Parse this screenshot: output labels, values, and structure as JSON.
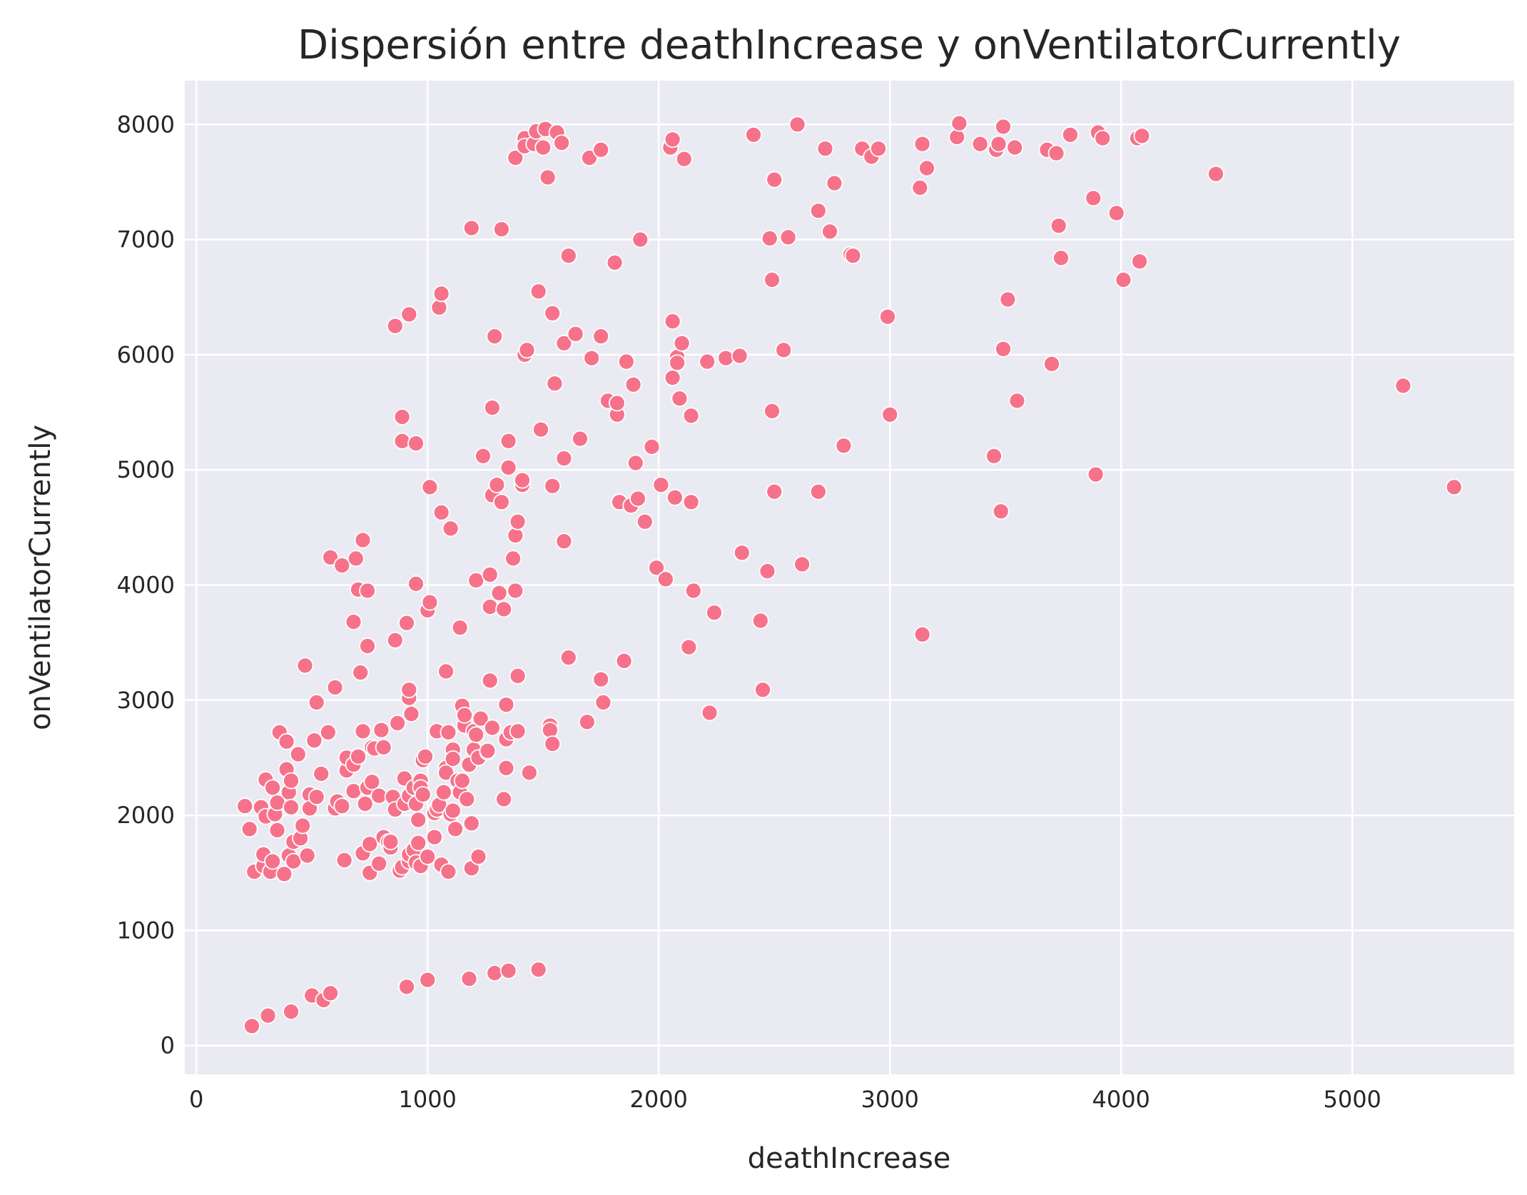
{
  "chart_data": {
    "type": "scatter",
    "title": "Dispersión entre deathIncrease y onVentilatorCurrently",
    "xlabel": "deathIncrease",
    "ylabel": "onVentilatorCurrently",
    "xlim": [
      -50,
      5700
    ],
    "ylim": [
      -250,
      8380
    ],
    "xticks": [
      0,
      1000,
      2000,
      3000,
      4000,
      5000
    ],
    "yticks": [
      0,
      1000,
      2000,
      3000,
      4000,
      5000,
      6000,
      7000,
      8000
    ],
    "grid": true,
    "background": "#eaeaf2",
    "marker_color": "#f6728a",
    "points": [
      [
        240,
        170
      ],
      [
        310,
        260
      ],
      [
        410,
        295
      ],
      [
        500,
        435
      ],
      [
        550,
        395
      ],
      [
        580,
        455
      ],
      [
        910,
        510
      ],
      [
        1000,
        570
      ],
      [
        1180,
        580
      ],
      [
        1290,
        630
      ],
      [
        1350,
        650
      ],
      [
        1480,
        660
      ],
      [
        210,
        2080
      ],
      [
        230,
        1880
      ],
      [
        250,
        1510
      ],
      [
        280,
        2070
      ],
      [
        290,
        1560
      ],
      [
        290,
        1660
      ],
      [
        300,
        2310
      ],
      [
        300,
        1990
      ],
      [
        320,
        1510
      ],
      [
        330,
        1600
      ],
      [
        330,
        2240
      ],
      [
        340,
        2010
      ],
      [
        350,
        2110
      ],
      [
        350,
        1870
      ],
      [
        360,
        2720
      ],
      [
        380,
        1490
      ],
      [
        390,
        2400
      ],
      [
        390,
        2640
      ],
      [
        400,
        1650
      ],
      [
        400,
        2200
      ],
      [
        410,
        2300
      ],
      [
        410,
        2070
      ],
      [
        420,
        1600
      ],
      [
        420,
        1770
      ],
      [
        440,
        2530
      ],
      [
        450,
        1800
      ],
      [
        460,
        1910
      ],
      [
        470,
        3300
      ],
      [
        480,
        1650
      ],
      [
        490,
        2180
      ],
      [
        490,
        2060
      ],
      [
        510,
        2640
      ],
      [
        510,
        2650
      ],
      [
        520,
        2160
      ],
      [
        520,
        2980
      ],
      [
        540,
        2360
      ],
      [
        570,
        2720
      ],
      [
        580,
        4240
      ],
      [
        600,
        3110
      ],
      [
        600,
        2060
      ],
      [
        610,
        2120
      ],
      [
        630,
        2080
      ],
      [
        630,
        4170
      ],
      [
        640,
        1610
      ],
      [
        650,
        2390
      ],
      [
        650,
        2500
      ],
      [
        680,
        3680
      ],
      [
        680,
        2210
      ],
      [
        680,
        2440
      ],
      [
        690,
        4230
      ],
      [
        700,
        3960
      ],
      [
        700,
        2510
      ],
      [
        710,
        3240
      ],
      [
        720,
        4390
      ],
      [
        720,
        2730
      ],
      [
        720,
        1670
      ],
      [
        730,
        2100
      ],
      [
        740,
        2240
      ],
      [
        740,
        3470
      ],
      [
        740,
        3950
      ],
      [
        750,
        1750
      ],
      [
        750,
        1500
      ],
      [
        760,
        2290
      ],
      [
        760,
        2590
      ],
      [
        770,
        2580
      ],
      [
        790,
        1580
      ],
      [
        790,
        2170
      ],
      [
        800,
        2740
      ],
      [
        810,
        2590
      ],
      [
        810,
        1810
      ],
      [
        830,
        1770
      ],
      [
        840,
        1720
      ],
      [
        840,
        1770
      ],
      [
        850,
        2160
      ],
      [
        860,
        6250
      ],
      [
        860,
        2050
      ],
      [
        860,
        3520
      ],
      [
        870,
        2800
      ],
      [
        880,
        1520
      ],
      [
        890,
        1550
      ],
      [
        890,
        5460
      ],
      [
        890,
        5250
      ],
      [
        900,
        2320
      ],
      [
        900,
        2100
      ],
      [
        910,
        3670
      ],
      [
        920,
        1600
      ],
      [
        920,
        1660
      ],
      [
        920,
        6350
      ],
      [
        920,
        3020
      ],
      [
        920,
        2170
      ],
      [
        920,
        3090
      ],
      [
        930,
        2880
      ],
      [
        940,
        1700
      ],
      [
        940,
        2240
      ],
      [
        950,
        1590
      ],
      [
        950,
        5230
      ],
      [
        950,
        4010
      ],
      [
        950,
        2100
      ],
      [
        960,
        1960
      ],
      [
        960,
        1760
      ],
      [
        970,
        2300
      ],
      [
        970,
        2240
      ],
      [
        970,
        1560
      ],
      [
        980,
        2180
      ],
      [
        980,
        2480
      ],
      [
        990,
        2510
      ],
      [
        1000,
        3780
      ],
      [
        1000,
        1640
      ],
      [
        1010,
        3850
      ],
      [
        1010,
        4850
      ],
      [
        1030,
        2020
      ],
      [
        1030,
        1810
      ],
      [
        1040,
        2050
      ],
      [
        1040,
        2730
      ],
      [
        1050,
        6410
      ],
      [
        1050,
        2090
      ],
      [
        1060,
        6530
      ],
      [
        1060,
        4630
      ],
      [
        1060,
        1570
      ],
      [
        1070,
        2200
      ],
      [
        1080,
        2410
      ],
      [
        1080,
        3250
      ],
      [
        1080,
        2370
      ],
      [
        1090,
        2720
      ],
      [
        1090,
        1510
      ],
      [
        1100,
        2010
      ],
      [
        1100,
        4490
      ],
      [
        1110,
        2570
      ],
      [
        1110,
        2490
      ],
      [
        1110,
        2040
      ],
      [
        1120,
        1880
      ],
      [
        1130,
        2300
      ],
      [
        1140,
        3630
      ],
      [
        1140,
        2200
      ],
      [
        1150,
        2300
      ],
      [
        1150,
        2950
      ],
      [
        1160,
        2780
      ],
      [
        1160,
        2870
      ],
      [
        1170,
        2140
      ],
      [
        1180,
        2440
      ],
      [
        1190,
        7100
      ],
      [
        1190,
        1540
      ],
      [
        1190,
        1930
      ],
      [
        1200,
        2570
      ],
      [
        1200,
        2730
      ],
      [
        1210,
        2700
      ],
      [
        1210,
        4040
      ],
      [
        1220,
        2500
      ],
      [
        1220,
        1640
      ],
      [
        1230,
        2840
      ],
      [
        1240,
        5120
      ],
      [
        1260,
        2550
      ],
      [
        1260,
        2560
      ],
      [
        1270,
        3810
      ],
      [
        1270,
        4090
      ],
      [
        1270,
        3170
      ],
      [
        1280,
        4780
      ],
      [
        1280,
        5540
      ],
      [
        1280,
        2760
      ],
      [
        1290,
        6160
      ],
      [
        1300,
        4870
      ],
      [
        1310,
        3930
      ],
      [
        1320,
        4720
      ],
      [
        1320,
        7090
      ],
      [
        1330,
        3790
      ],
      [
        1330,
        2140
      ],
      [
        1340,
        2960
      ],
      [
        1340,
        2410
      ],
      [
        1340,
        2660
      ],
      [
        1350,
        5250
      ],
      [
        1350,
        5020
      ],
      [
        1360,
        2720
      ],
      [
        1370,
        4230
      ],
      [
        1380,
        4430
      ],
      [
        1380,
        3950
      ],
      [
        1380,
        7710
      ],
      [
        1390,
        4550
      ],
      [
        1390,
        3210
      ],
      [
        1390,
        2730
      ],
      [
        1410,
        4870
      ],
      [
        1410,
        4910
      ],
      [
        1420,
        7880
      ],
      [
        1420,
        7810
      ],
      [
        1420,
        6000
      ],
      [
        1430,
        6040
      ],
      [
        1440,
        2370
      ],
      [
        1460,
        7830
      ],
      [
        1470,
        7940
      ],
      [
        1480,
        6550
      ],
      [
        1490,
        5350
      ],
      [
        1500,
        7800
      ],
      [
        1510,
        7960
      ],
      [
        1520,
        7540
      ],
      [
        1530,
        2780
      ],
      [
        1530,
        2740
      ],
      [
        1540,
        6360
      ],
      [
        1540,
        2620
      ],
      [
        1540,
        4860
      ],
      [
        1550,
        5750
      ],
      [
        1560,
        7930
      ],
      [
        1580,
        7840
      ],
      [
        1590,
        5100
      ],
      [
        1590,
        4380
      ],
      [
        1590,
        6100
      ],
      [
        1610,
        6860
      ],
      [
        1610,
        3370
      ],
      [
        1640,
        6180
      ],
      [
        1660,
        5270
      ],
      [
        1690,
        2810
      ],
      [
        1700,
        7710
      ],
      [
        1710,
        5970
      ],
      [
        1750,
        7780
      ],
      [
        1750,
        6160
      ],
      [
        1750,
        3180
      ],
      [
        1760,
        2980
      ],
      [
        1780,
        5600
      ],
      [
        1810,
        6800
      ],
      [
        1820,
        5480
      ],
      [
        1820,
        5580
      ],
      [
        1830,
        4720
      ],
      [
        1850,
        3340
      ],
      [
        1860,
        5940
      ],
      [
        1880,
        4690
      ],
      [
        1890,
        5740
      ],
      [
        1900,
        5060
      ],
      [
        1910,
        4750
      ],
      [
        1920,
        7000
      ],
      [
        1940,
        4550
      ],
      [
        1970,
        5200
      ],
      [
        1990,
        4150
      ],
      [
        2010,
        4870
      ],
      [
        2030,
        4050
      ],
      [
        2050,
        7800
      ],
      [
        2060,
        7870
      ],
      [
        2060,
        6290
      ],
      [
        2060,
        5800
      ],
      [
        2070,
        4760
      ],
      [
        2080,
        5980
      ],
      [
        2080,
        5930
      ],
      [
        2090,
        5620
      ],
      [
        2100,
        6100
      ],
      [
        2110,
        7700
      ],
      [
        2130,
        3460
      ],
      [
        2140,
        5470
      ],
      [
        2140,
        4720
      ],
      [
        2150,
        3950
      ],
      [
        2210,
        5940
      ],
      [
        2220,
        2890
      ],
      [
        2240,
        3760
      ],
      [
        2290,
        5970
      ],
      [
        2350,
        5990
      ],
      [
        2360,
        4280
      ],
      [
        2410,
        7910
      ],
      [
        2440,
        3690
      ],
      [
        2450,
        3090
      ],
      [
        2470,
        4120
      ],
      [
        2480,
        7010
      ],
      [
        2490,
        6650
      ],
      [
        2490,
        5510
      ],
      [
        2500,
        7520
      ],
      [
        2500,
        4810
      ],
      [
        2540,
        6040
      ],
      [
        2560,
        7020
      ],
      [
        2600,
        8000
      ],
      [
        2620,
        4180
      ],
      [
        2690,
        7250
      ],
      [
        2690,
        4810
      ],
      [
        2720,
        7790
      ],
      [
        2740,
        7070
      ],
      [
        2760,
        7490
      ],
      [
        2800,
        5210
      ],
      [
        2830,
        6870
      ],
      [
        2840,
        6860
      ],
      [
        2880,
        7790
      ],
      [
        2920,
        7720
      ],
      [
        2950,
        7790
      ],
      [
        2990,
        6330
      ],
      [
        3000,
        5480
      ],
      [
        3130,
        7450
      ],
      [
        3140,
        7830
      ],
      [
        3140,
        3570
      ],
      [
        3160,
        7620
      ],
      [
        3290,
        7890
      ],
      [
        3300,
        8010
      ],
      [
        3390,
        7830
      ],
      [
        3450,
        5120
      ],
      [
        3460,
        7780
      ],
      [
        3470,
        7830
      ],
      [
        3480,
        4640
      ],
      [
        3490,
        7980
      ],
      [
        3490,
        6050
      ],
      [
        3510,
        6480
      ],
      [
        3540,
        7800
      ],
      [
        3550,
        5600
      ],
      [
        3680,
        7780
      ],
      [
        3700,
        5920
      ],
      [
        3720,
        7750
      ],
      [
        3730,
        7120
      ],
      [
        3740,
        6840
      ],
      [
        3780,
        7910
      ],
      [
        3880,
        7360
      ],
      [
        3890,
        4960
      ],
      [
        3900,
        7930
      ],
      [
        3920,
        7880
      ],
      [
        3980,
        7230
      ],
      [
        4010,
        6650
      ],
      [
        4070,
        7880
      ],
      [
        4080,
        6810
      ],
      [
        4090,
        7900
      ],
      [
        4410,
        7570
      ],
      [
        5220,
        5730
      ],
      [
        5440,
        4850
      ]
    ]
  }
}
